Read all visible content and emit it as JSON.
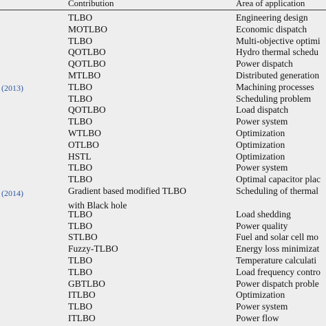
{
  "table": {
    "headers": {
      "contribution": "Contribution",
      "area": "Area of application"
    },
    "years": [
      "(2013)",
      "(2014)"
    ],
    "rows": [
      [
        "TLBO",
        "Engineering design"
      ],
      [
        "MOTLBO",
        "Economic dispatch"
      ],
      [
        "TLBO",
        "Multi-objective optimi"
      ],
      [
        "QOTLBO",
        "Hydro thermal schedu"
      ],
      [
        "QOTLBO",
        "Power dispatch"
      ],
      [
        "MTLBO",
        "Distributed generation"
      ],
      [
        "TLBO",
        "Machining processes"
      ],
      [
        "TLBO",
        "Scheduling problem"
      ],
      [
        "QOTLBO",
        "Load dispatch"
      ],
      [
        "TLBO",
        "Power system"
      ],
      [
        "WTLBO",
        "Optimization"
      ],
      [
        "OTLBO",
        "Optimization"
      ],
      [
        "HSTL",
        "Optimization"
      ],
      [
        "TLBO",
        "Power system"
      ],
      [
        "TLBO",
        "Optimal capacitor plac"
      ],
      [
        "Gradient based modified TLBO",
        "Scheduling of thermal"
      ],
      [
        "TLBO",
        "Load shedding"
      ],
      [
        "TLBO",
        "Power quality"
      ],
      [
        "STLBO",
        "Fuel and solar cell mo"
      ],
      [
        "Fuzzy-TLBO",
        "Energy loss minimizat"
      ],
      [
        "TLBO",
        "Temperature calculati"
      ],
      [
        "TLBO",
        "Load frequency contro"
      ],
      [
        "GBTLBO",
        "Power dispatch proble"
      ],
      [
        "ITLBO",
        "Optimization"
      ],
      [
        "TLBO",
        "Power system"
      ],
      [
        "ITLBO",
        "Power flow"
      ]
    ],
    "continuation": "with Black hole"
  }
}
